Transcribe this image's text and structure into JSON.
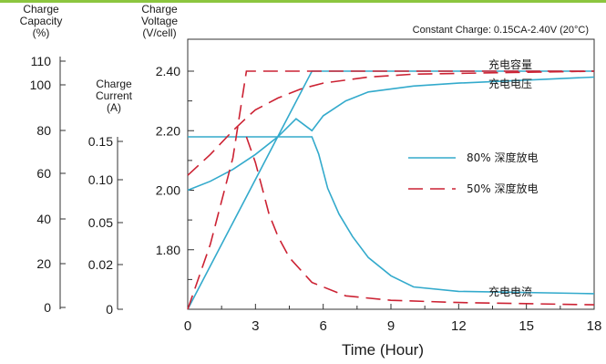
{
  "chart_data": {
    "type": "line",
    "header": "Constant Charge: 0.15CA-2.40V (20°C)",
    "xlabel": "Time (Hour)",
    "xlim": [
      0,
      18
    ],
    "xticks": [
      0,
      3,
      6,
      9,
      12,
      15,
      18
    ],
    "axes": {
      "capacity": {
        "label": [
          "Charge",
          "Capacity",
          "(%)"
        ],
        "unit": "%",
        "ticks": [
          0,
          20,
          40,
          60,
          80,
          100,
          110
        ]
      },
      "current": {
        "label": [
          "Charge",
          "Current",
          "(A)"
        ],
        "unit": "A",
        "ticks": [
          "0",
          "0.02",
          "0.05",
          "0.10",
          "0.15"
        ]
      },
      "voltage": {
        "label": [
          "Charge",
          "Voltage",
          "(V/cell)"
        ],
        "unit": "V/cell",
        "ticks": [
          "1.80",
          "2.00",
          "2.20",
          "2.40"
        ],
        "ylim": [
          1.6,
          2.4
        ]
      }
    },
    "annotations": {
      "capacity": "充电容量",
      "voltage": "充电电压",
      "current": "充电电流"
    },
    "series": [
      {
        "name": "80% 深度放电",
        "color": "#33aacc",
        "dash": "solid",
        "capacity": [
          [
            0,
            0
          ],
          [
            5.5,
            110
          ],
          [
            18,
            110
          ]
        ],
        "voltage": [
          [
            0,
            2.0
          ],
          [
            1,
            2.03
          ],
          [
            2,
            2.07
          ],
          [
            3,
            2.12
          ],
          [
            4,
            2.18
          ],
          [
            4.8,
            2.24
          ],
          [
            5.5,
            2.2
          ],
          [
            6,
            2.25
          ],
          [
            7,
            2.3
          ],
          [
            8,
            2.33
          ],
          [
            10,
            2.35
          ],
          [
            12,
            2.36
          ],
          [
            15,
            2.37
          ],
          [
            18,
            2.38
          ]
        ],
        "current": [
          [
            0,
            0.15
          ],
          [
            5.5,
            0.15
          ],
          [
            5.8,
            0.13
          ],
          [
            6.2,
            0.09
          ],
          [
            6.7,
            0.06
          ],
          [
            7.3,
            0.04
          ],
          [
            8,
            0.025
          ],
          [
            9,
            0.015
          ],
          [
            10,
            0.01
          ],
          [
            12,
            0.008
          ],
          [
            18,
            0.007
          ]
        ]
      },
      {
        "name": "50% 深度放电",
        "color": "#cc2233",
        "dash": "dashed",
        "capacity": [
          [
            0,
            0
          ],
          [
            1,
            30
          ],
          [
            2,
            70
          ],
          [
            2.6,
            110
          ],
          [
            18,
            110
          ]
        ],
        "voltage": [
          [
            0,
            2.05
          ],
          [
            1,
            2.12
          ],
          [
            2,
            2.2
          ],
          [
            2.7,
            2.25
          ],
          [
            3,
            2.27
          ],
          [
            4,
            2.31
          ],
          [
            5,
            2.34
          ],
          [
            6,
            2.36
          ],
          [
            8,
            2.38
          ],
          [
            10,
            2.39
          ],
          [
            14,
            2.395
          ],
          [
            18,
            2.4
          ]
        ],
        "current": [
          [
            2.6,
            0.15
          ],
          [
            3,
            0.12
          ],
          [
            3.3,
            0.09
          ],
          [
            3.6,
            0.06
          ],
          [
            4,
            0.04
          ],
          [
            4.5,
            0.025
          ],
          [
            5.5,
            0.012
          ],
          [
            7,
            0.006
          ],
          [
            9,
            0.004
          ],
          [
            12,
            0.003
          ],
          [
            18,
            0.002
          ]
        ]
      }
    ]
  }
}
